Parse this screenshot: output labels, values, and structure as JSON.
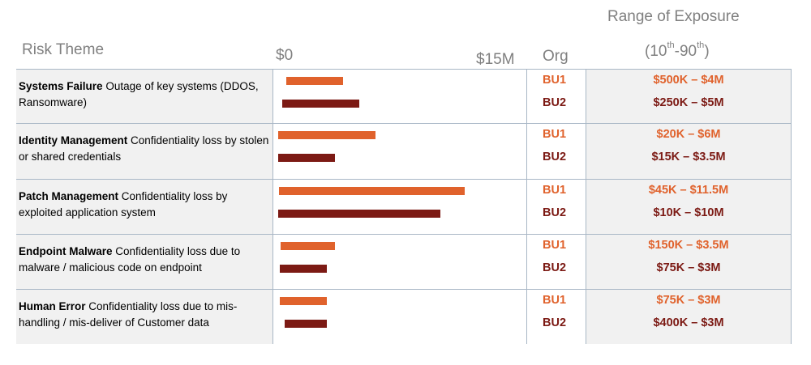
{
  "headers": {
    "risk_theme": "Risk Theme",
    "axis_min": "$0",
    "axis_max": "$15M",
    "org": "Org",
    "range_line1": "Range of Exposure",
    "range_open": "(10",
    "range_sup1": "th",
    "range_mid": "-90",
    "range_sup2": "th",
    "range_close": ")"
  },
  "colors": {
    "bu1": "#e0622c",
    "bu2": "#7c1a14"
  },
  "chart_data": {
    "type": "bar",
    "orientation": "horizontal-range",
    "xlim": [
      0,
      15
    ],
    "x_unit": "$M",
    "rows": [
      {
        "theme_bold": "Systems Failure",
        "theme_text": "  Outage of key systems (DDOS, Ransomware)",
        "series": [
          {
            "org": "BU1",
            "range_label": "$500K – $4M",
            "low": 0.5,
            "high": 4.0
          },
          {
            "org": "BU2",
            "range_label": "$250K – $5M",
            "low": 0.25,
            "high": 5.0
          }
        ]
      },
      {
        "theme_bold": "Identity Management",
        "theme_text": " Confidentiality loss by stolen or shared credentials",
        "series": [
          {
            "org": "BU1",
            "range_label": "$20K – $6M",
            "low": 0.02,
            "high": 6.0
          },
          {
            "org": "BU2",
            "range_label": "$15K – $3.5M",
            "low": 0.015,
            "high": 3.5
          }
        ]
      },
      {
        "theme_bold": "Patch Management",
        "theme_text": " Confidentiality loss by exploited application system",
        "series": [
          {
            "org": "BU1",
            "range_label": "$45K – $11.5M",
            "low": 0.045,
            "high": 11.5
          },
          {
            "org": "BU2",
            "range_label": "$10K – $10M",
            "low": 0.01,
            "high": 10.0
          }
        ]
      },
      {
        "theme_bold": "Endpoint Malware",
        "theme_text": " Confidentiality loss due to malware / malicious code on endpoint",
        "series": [
          {
            "org": "BU1",
            "range_label": "$150K – $3.5M",
            "low": 0.15,
            "high": 3.5
          },
          {
            "org": "BU2",
            "range_label": "$75K – $3M",
            "low": 0.075,
            "high": 3.0
          }
        ]
      },
      {
        "theme_bold": "Human Error",
        "theme_text": " Confidentiality loss due to mis-handling / mis-deliver of Customer data",
        "series": [
          {
            "org": "BU1",
            "range_label": "$75K – $3M",
            "low": 0.075,
            "high": 3.0
          },
          {
            "org": "BU2",
            "range_label": "$400K – $3M",
            "low": 0.4,
            "high": 3.0
          }
        ]
      }
    ]
  }
}
